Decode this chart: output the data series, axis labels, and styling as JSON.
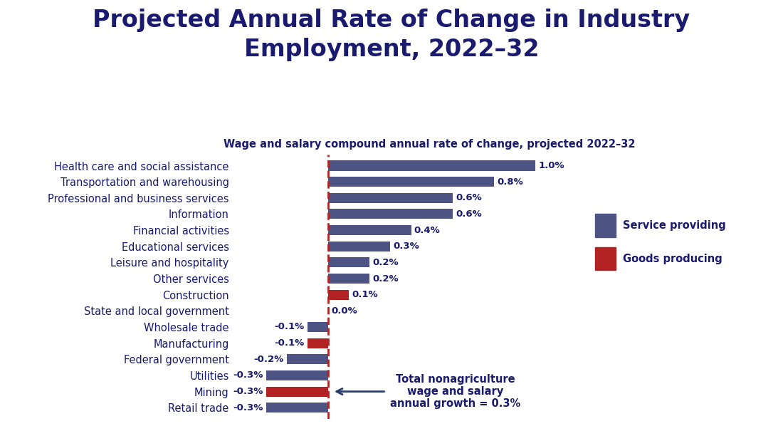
{
  "title": "Projected Annual Rate of Change in Industry\nEmployment, 2022–32",
  "subtitle": "Wage and salary compound annual rate of change, projected 2022–32",
  "categories": [
    "Health care and social assistance",
    "Transportation and warehousing",
    "Professional and business services",
    "Information",
    "Financial activities",
    "Educational services",
    "Leisure and hospitality",
    "Other services",
    "Construction",
    "State and local government",
    "Wholesale trade",
    "Manufacturing",
    "Federal government",
    "Utilities",
    "Mining",
    "Retail trade"
  ],
  "values": [
    1.0,
    0.8,
    0.6,
    0.6,
    0.4,
    0.3,
    0.2,
    0.2,
    0.1,
    0.0,
    -0.1,
    -0.1,
    -0.2,
    -0.3,
    -0.3,
    -0.3
  ],
  "bar_types": [
    "service",
    "service",
    "service",
    "service",
    "service",
    "service",
    "service",
    "service",
    "goods",
    "service",
    "service",
    "goods",
    "service",
    "service",
    "goods",
    "service"
  ],
  "service_color": "#4d5382",
  "goods_color": "#b22222",
  "dashed_line_color": "#b22222",
  "title_color": "#1a1a6e",
  "subtitle_color": "#1a1a6e",
  "annotation_text": "Total nonagriculture\nwage and salary\nannual growth = 0.3%",
  "annotation_color": "#1a1a6e",
  "arrow_color": "#2c3e6e",
  "xlim": [
    -0.45,
    1.25
  ],
  "background_color": "#ffffff",
  "label_fontsize": 9.5,
  "category_fontsize": 10.5,
  "title_fontsize": 24,
  "subtitle_fontsize": 10.5
}
